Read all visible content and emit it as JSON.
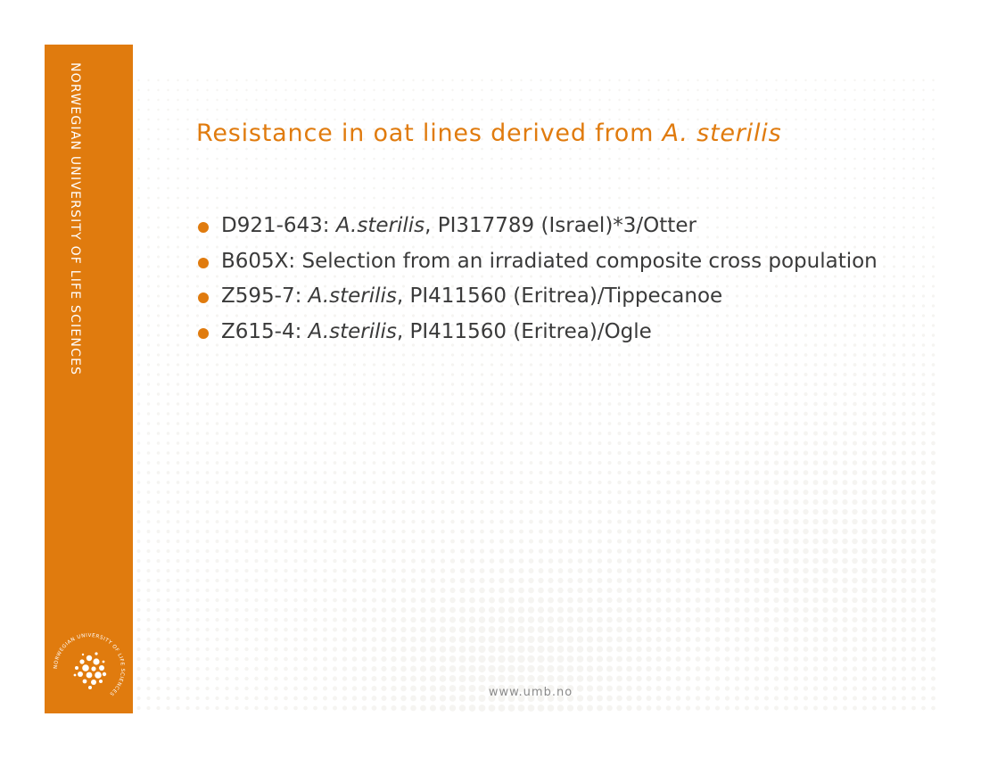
{
  "colors": {
    "accent": "#e07b0e",
    "body_text": "#3a3a3a",
    "footer_text": "#8a8a8a"
  },
  "sidebar": {
    "text": "NORWEGIAN UNIVERSITY OF LIFE SCIENCES",
    "logo_ring_text": "NORWEGIAN UNIVERSITY OF LIFE SCIENCES",
    "logo_icon": "university-dotted-circle-logo"
  },
  "title": {
    "prefix": "Resistance in oat lines derived from ",
    "italic": "A. sterilis"
  },
  "bullets": [
    {
      "code": "D921-643: ",
      "species": "A.sterilis",
      "rest": ", PI317789 (Israel)*3/Otter"
    },
    {
      "code": "B605X: ",
      "species": "",
      "rest": "Selection from an irradiated composite cross population"
    },
    {
      "code": "Z595-7: ",
      "species": "A.sterilis",
      "rest": ", PI411560 (Eritrea)/Tippecanoe"
    },
    {
      "code": "Z615-4: ",
      "species": "A.sterilis",
      "rest": ", PI411560 (Eritrea)/Ogle"
    }
  ],
  "footer": {
    "url": "www.umb.no"
  }
}
